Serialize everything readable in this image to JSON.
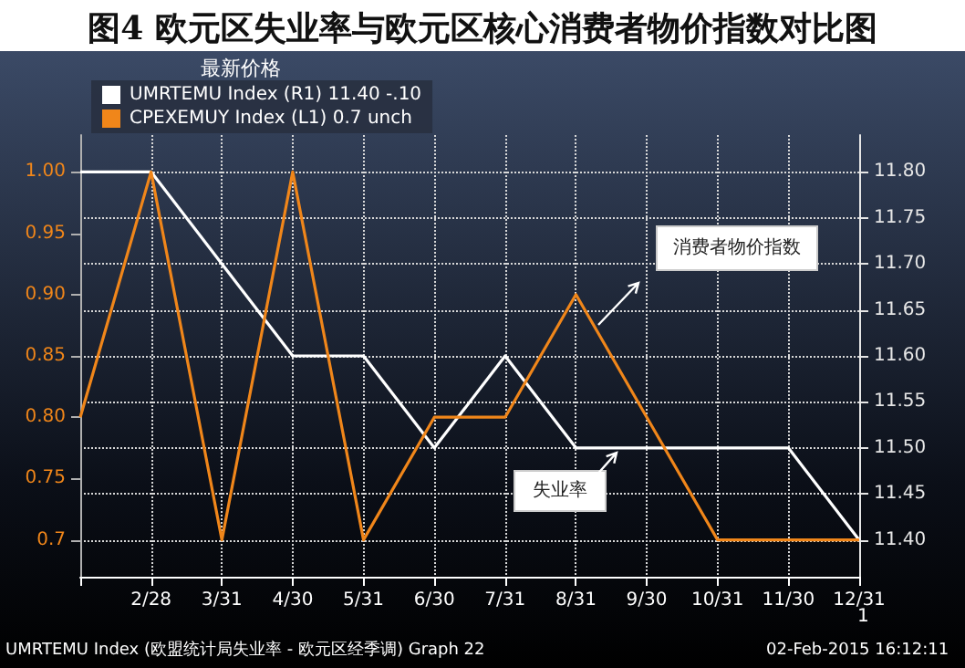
{
  "chart_data": {
    "type": "line",
    "title": "图4 欧元区失业率与欧元区核心消费者物价指数对比图",
    "categories": [
      null,
      "2/28",
      "3/31",
      "4/30",
      "5/31",
      "6/30",
      "7/31",
      "8/31",
      "9/30",
      "10/31",
      "11/30",
      "12/31"
    ],
    "series": [
      {
        "name": "UMRTEMU Index (R1) 11.40 -.10",
        "color": "#ffffff",
        "axis": "y2",
        "values": [
          11.8,
          11.8,
          11.7,
          11.6,
          11.6,
          11.5,
          11.6,
          11.5,
          11.5,
          11.5,
          11.5,
          11.4
        ]
      },
      {
        "name": "CPEXEMUY Index (L1) 0.7 unch",
        "color": "#f0861a",
        "values": [
          0.8,
          1.0,
          0.7,
          1.0,
          0.7,
          0.8,
          0.8,
          0.9,
          0.8,
          0.7,
          0.7,
          0.7
        ]
      }
    ],
    "legend_title": "最新价格",
    "legend": "top left",
    "ylim": [
      0.67,
      1.03
    ],
    "yticks": [
      {
        "value": 0.7,
        "label": "0.7"
      },
      0.75,
      {
        "value": 0.8,
        "label": "0.80"
      },
      0.85,
      {
        "value": 0.9,
        "label": "0.90"
      },
      0.95,
      {
        "value": 1.0,
        "label": "1.00"
      }
    ],
    "y2lim": [
      11.36,
      11.84
    ],
    "y2ticks": [
      {
        "value": 11.4,
        "label": "11.40"
      },
      11.45,
      {
        "value": 11.5,
        "label": "11.50"
      },
      11.55,
      {
        "value": 11.6,
        "label": "11.60"
      },
      11.65,
      {
        "value": 11.7,
        "label": "11.70"
      },
      11.75,
      {
        "value": 11.8,
        "label": "11.80"
      }
    ],
    "grid": true,
    "marker": "none",
    "annotations": [
      "消费者物价指数",
      "失业率",
      "1",
      "UMRTEMU Index (欧盟统计局失业率 - 欧元区经季调) Graph 22",
      "02-Feb-2015 16:12:11"
    ]
  }
}
